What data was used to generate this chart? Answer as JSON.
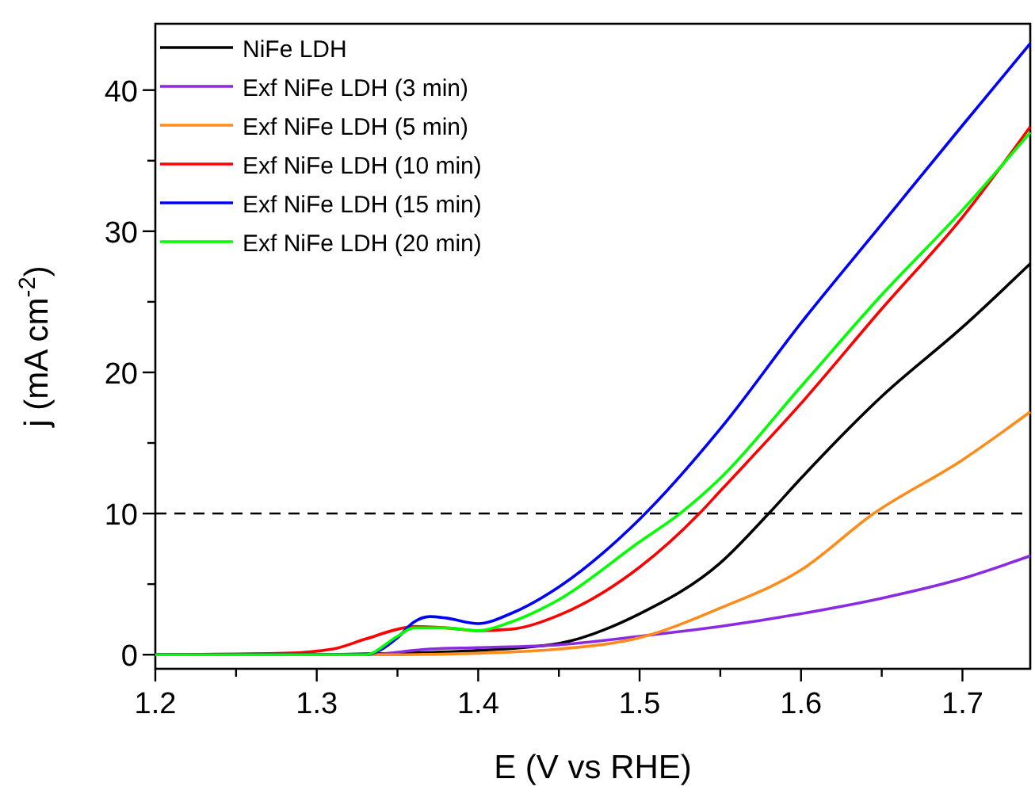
{
  "chart_data": {
    "type": "line",
    "xlabel": "E (V vs RHE)",
    "ylabel": "j (mA cm$^{-2}$)",
    "xlim": [
      1.2,
      1.742
    ],
    "ylim": [
      -1,
      44.7
    ],
    "xticks": [
      1.2,
      {
        "value": 1.25,
        "label": null
      },
      1.3,
      {
        "value": 1.35,
        "label": null
      },
      1.4,
      {
        "value": 1.45,
        "label": null
      },
      1.5,
      {
        "value": 1.55,
        "label": null
      },
      1.6,
      {
        "value": 1.65,
        "label": null
      },
      1.7
    ],
    "yticks": [
      0,
      {
        "value": 5,
        "label": null
      },
      10,
      {
        "value": 15,
        "label": null
      },
      20,
      {
        "value": 25,
        "label": null
      },
      30,
      {
        "value": 35,
        "label": null
      },
      40
    ],
    "legend": "top left",
    "grid": false,
    "line_style": "solid",
    "ref_lines": [
      {
        "axis": "y",
        "value": 10,
        "color": "#000000",
        "line_style": "dashed"
      }
    ],
    "series": [
      {
        "name": "NiFe LDH",
        "color": "#000000",
        "x": [
          1.2,
          1.3,
          1.35,
          1.4,
          1.45,
          1.5,
          1.55,
          1.58,
          1.6,
          1.65,
          1.7,
          1.742
        ],
        "values": [
          0,
          0,
          0.1,
          0.3,
          0.8,
          2.9,
          6.5,
          10,
          12.5,
          18.3,
          23.2,
          27.7
        ]
      },
      {
        "name": "Exf NiFe LDH (3 min)",
        "color": "#8a2be2",
        "x": [
          1.2,
          1.33,
          1.37,
          1.4,
          1.45,
          1.5,
          1.55,
          1.6,
          1.65,
          1.7,
          1.742
        ],
        "values": [
          0,
          0,
          0.4,
          0.5,
          0.7,
          1.3,
          2.0,
          2.9,
          4.0,
          5.4,
          7.0
        ]
      },
      {
        "name": "Exf NiFe LDH (5 min)",
        "color": "#ff8c1a",
        "x": [
          1.2,
          1.35,
          1.4,
          1.45,
          1.5,
          1.55,
          1.6,
          1.645,
          1.7,
          1.742
        ],
        "values": [
          0,
          0,
          0.1,
          0.4,
          1.2,
          3.3,
          6.0,
          10,
          13.8,
          17.2
        ]
      },
      {
        "name": "Exf NiFe LDH (10 min)",
        "color": "#ff0000",
        "x": [
          1.2,
          1.28,
          1.31,
          1.33,
          1.35,
          1.36,
          1.38,
          1.4,
          1.42,
          1.45,
          1.5,
          1.537,
          1.55,
          1.6,
          1.65,
          1.7,
          1.742
        ],
        "values": [
          0,
          0.1,
          0.4,
          1.1,
          1.8,
          2.0,
          1.9,
          1.7,
          1.8,
          2.8,
          6.2,
          10,
          11.6,
          17.8,
          24.5,
          31,
          37.4
        ]
      },
      {
        "name": "Exf NiFe LDH (15 min)",
        "color": "#0000ff",
        "x": [
          1.2,
          1.33,
          1.35,
          1.36,
          1.37,
          1.38,
          1.4,
          1.42,
          1.45,
          1.5,
          1.55,
          1.6,
          1.65,
          1.7,
          1.742
        ],
        "values": [
          0,
          0,
          1.2,
          2.3,
          2.7,
          2.6,
          2.2,
          2.9,
          4.8,
          9.6,
          16,
          23.5,
          30.5,
          37.5,
          43.3
        ]
      },
      {
        "name": "Exf NiFe LDH (20 min)",
        "color": "#00ff00",
        "x": [
          1.2,
          1.33,
          1.35,
          1.36,
          1.38,
          1.4,
          1.42,
          1.45,
          1.5,
          1.525,
          1.55,
          1.6,
          1.65,
          1.7,
          1.742
        ],
        "values": [
          0,
          0,
          1.3,
          1.9,
          1.9,
          1.7,
          2.3,
          3.9,
          8,
          10,
          12.5,
          19,
          25.5,
          31.5,
          37
        ]
      }
    ]
  }
}
